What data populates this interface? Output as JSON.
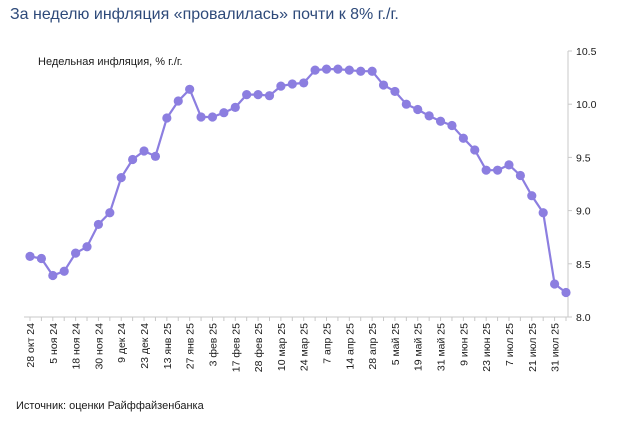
{
  "title": "За неделю инфляция «провалилась» почти к 8% г./г.",
  "source": "Источник: оценки Райффайзенбанка",
  "chart_data": {
    "type": "line",
    "title": "За неделю инфляция «провалилась» почти к 8% г./г.",
    "subtitle": "Недельная инфляция, % г./г.",
    "ylabel": "",
    "xlabel": "",
    "ylim": [
      8.0,
      10.5
    ],
    "y_ticks": [
      "10.5",
      "10.0",
      "9.5",
      "9.0",
      "8.5",
      "8.0"
    ],
    "y_tick_values": [
      10.5,
      10.0,
      9.5,
      9.0,
      8.5,
      8.0
    ],
    "y_axis_position": "right",
    "grid": false,
    "legend": "none",
    "line_color": "#8c7ee0",
    "x_tick_labels": [
      "28 окт 24",
      "5 ноя 24",
      "18 ноя 24",
      "30 ноя 24",
      "9 дек 24",
      "23 дек 24",
      "13 янв 25",
      "27 янв 25",
      "3 фев 25",
      "17 фев 25",
      "28 фев 25",
      "10 мар 25",
      "24 мар 25",
      "7 апр 25",
      "14 апр 25",
      "28 апр 25",
      "5 май 25",
      "19 май 25",
      "31 май 25",
      "9 июн 25",
      "23 июн 25",
      "7 июл 25",
      "21 июл 25",
      "31 июл 25"
    ],
    "series": [
      {
        "values": [
          8.57,
          8.55,
          8.39,
          8.43,
          8.6,
          8.66,
          8.87,
          8.98,
          9.31,
          9.48,
          9.56,
          9.51,
          9.87,
          10.03,
          10.14,
          9.88,
          9.88,
          9.92,
          9.97,
          10.09,
          10.09,
          10.08,
          10.17,
          10.19,
          10.2,
          10.32,
          10.33,
          10.33,
          10.32,
          10.31,
          10.31,
          10.18,
          10.12,
          10.0,
          9.95,
          9.89,
          9.84,
          9.8,
          9.68,
          9.57,
          9.38,
          9.38,
          9.43,
          9.33,
          9.14,
          8.98,
          8.31,
          8.23
        ]
      }
    ]
  }
}
